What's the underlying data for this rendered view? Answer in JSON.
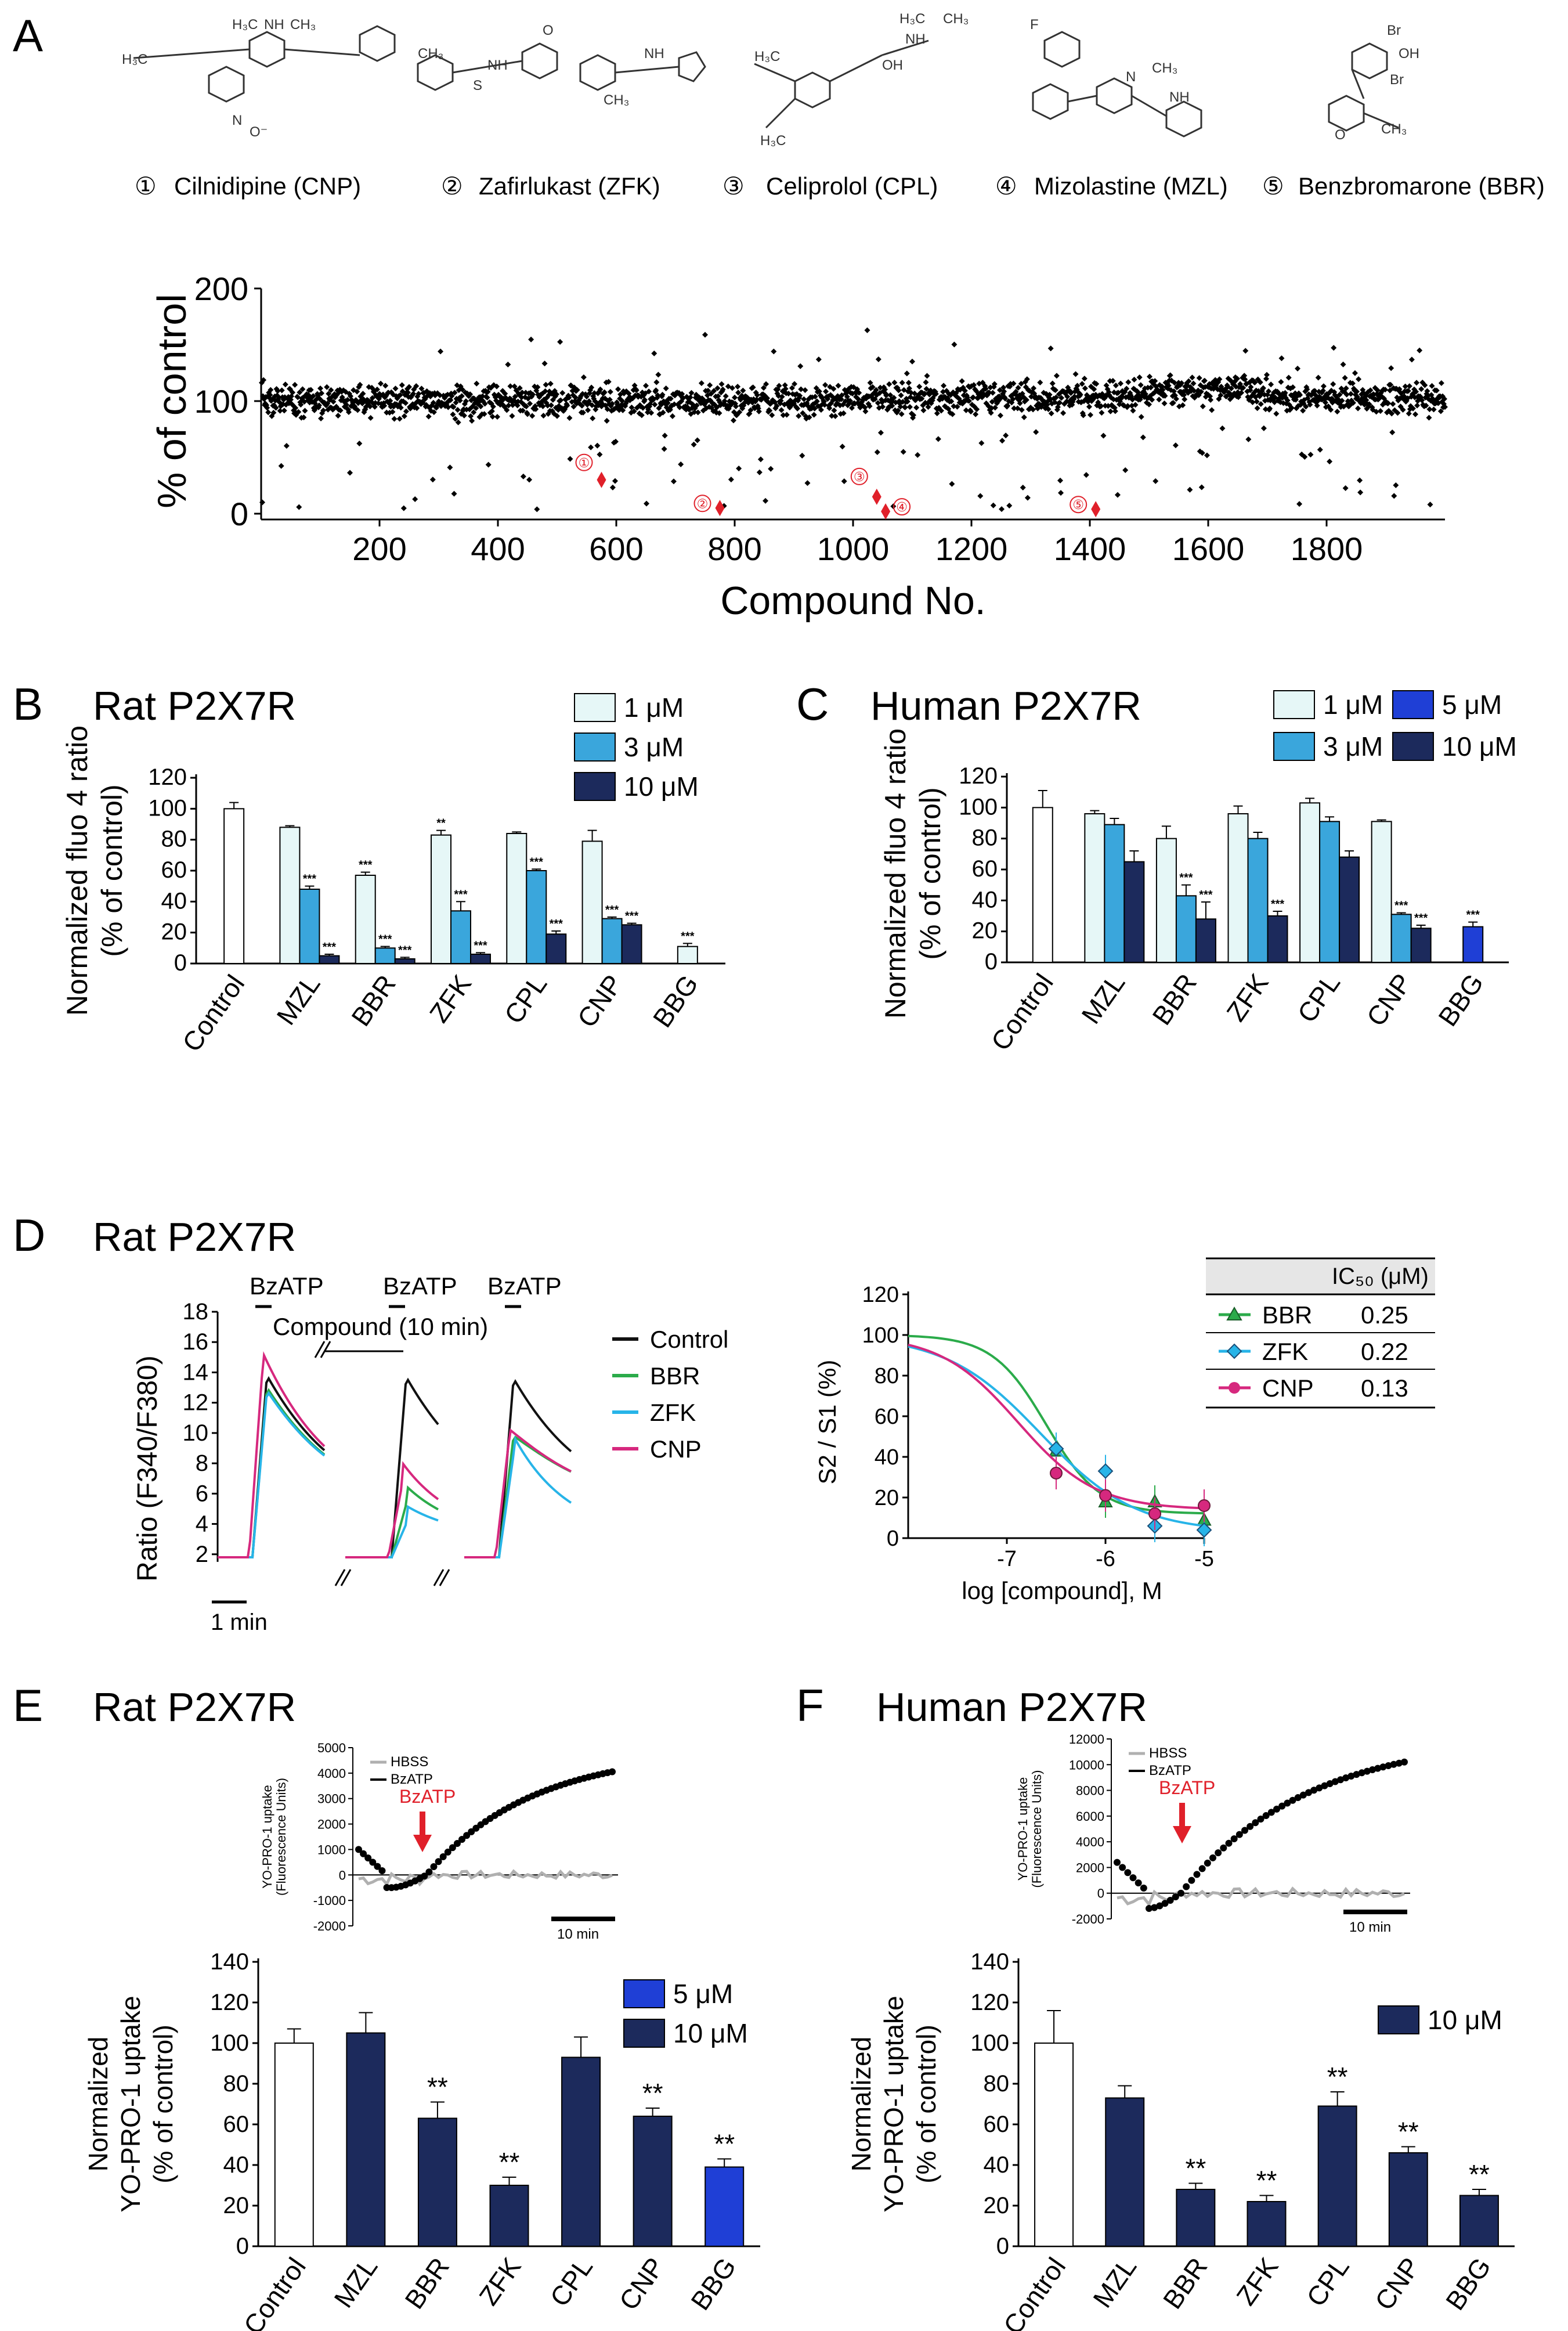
{
  "figure": {
    "panels": {
      "A": {
        "letter": "A"
      },
      "B": {
        "letter": "B",
        "title": "Rat P2X7R"
      },
      "C": {
        "letter": "C",
        "title": "Human P2X7R"
      },
      "D": {
        "letter": "D",
        "title": "Rat P2X7R"
      },
      "E": {
        "letter": "E",
        "title": "Rat P2X7R"
      },
      "F": {
        "letter": "F",
        "title": "Human P2X7R"
      }
    },
    "compounds": [
      {
        "num": "①",
        "label": "Cilnidipine (CNP)"
      },
      {
        "num": "②",
        "label": "Zafirlukast (ZFK)"
      },
      {
        "num": "③",
        "label": "Celiprolol (CPL)"
      },
      {
        "num": "④",
        "label": "Mizolastine (MZL)"
      },
      {
        "num": "⑤",
        "label": "Benzbromarone (BBR)"
      }
    ],
    "colors": {
      "white_bar": "#ffffff",
      "light": "#e6f7f7",
      "mid": "#3aa6dc",
      "dark": "#1c2a5c",
      "blue5": "#1f3fd6",
      "red": "#e0202a",
      "green": "#2bab4a",
      "cyan": "#27b4e8",
      "magenta": "#d6287e"
    }
  },
  "chart_data": [
    {
      "id": "A",
      "type": "scatter",
      "ylabel": "% of control",
      "xlabel": "Compound No.",
      "ylim": [
        0,
        200
      ],
      "xlim": [
        0,
        2000
      ],
      "yticks": [
        "0",
        "100",
        "200"
      ],
      "xticks": [
        "200",
        "400",
        "600",
        "800",
        "1000",
        "1200",
        "1400",
        "1600",
        "1800"
      ],
      "highlights": [
        {
          "label": "①",
          "x": 575,
          "y": 30
        },
        {
          "label": "②",
          "x": 775,
          "y": 5
        },
        {
          "label": "③",
          "x": 1040,
          "y": 15
        },
        {
          "label": "④",
          "x": 1055,
          "y": 2
        },
        {
          "label": "⑤",
          "x": 1410,
          "y": 4
        }
      ]
    },
    {
      "id": "B",
      "type": "bar",
      "ylabel": [
        "Normalized fluo 4 ratio",
        "(% of control)"
      ],
      "ylim": [
        0,
        120
      ],
      "yticks": [
        "0",
        "20",
        "40",
        "60",
        "80",
        "100",
        "120"
      ],
      "categories": [
        "Control",
        "MZL",
        "BBR",
        "ZFK",
        "CPL",
        "CNP",
        "BBG"
      ],
      "legend": [
        "1 μM",
        "3 μM",
        "10 μM"
      ],
      "series": [
        {
          "name": "1 μM",
          "values": [
            100,
            88,
            57,
            83,
            84,
            79,
            11
          ],
          "errors": [
            4,
            1,
            2,
            3,
            1,
            7,
            2
          ],
          "sig": [
            "",
            "",
            "***",
            "**",
            "",
            "",
            "***"
          ]
        },
        {
          "name": "3 μM",
          "values": [
            null,
            48,
            10,
            34,
            60,
            29,
            null
          ],
          "errors": [
            0,
            2,
            1,
            6,
            1,
            1,
            0
          ],
          "sig": [
            "",
            "***",
            "***",
            "***",
            "***",
            "***",
            ""
          ]
        },
        {
          "name": "10 μM",
          "values": [
            null,
            5,
            3,
            6,
            19,
            25,
            null
          ],
          "errors": [
            0,
            1,
            1,
            1,
            2,
            1,
            0
          ],
          "sig": [
            "",
            "***",
            "***",
            "***",
            "***",
            "***",
            ""
          ]
        }
      ]
    },
    {
      "id": "C",
      "type": "bar",
      "ylabel": [
        "Normalized fluo 4 ratio",
        "(% of control)"
      ],
      "ylim": [
        0,
        120
      ],
      "yticks": [
        "0",
        "20",
        "40",
        "60",
        "80",
        "100",
        "120"
      ],
      "categories": [
        "Control",
        "MZL",
        "BBR",
        "ZFK",
        "CPL",
        "CNP",
        "BBG"
      ],
      "legend": [
        "1 μM",
        "5 μM",
        "3 μM",
        "10 μM"
      ],
      "series": [
        {
          "name": "1 μM",
          "values": [
            100,
            96,
            80,
            96,
            103,
            91,
            null
          ],
          "errors": [
            11,
            2,
            8,
            5,
            3,
            1,
            0
          ],
          "sig": [
            "",
            "",
            "",
            "",
            "",
            "",
            ""
          ]
        },
        {
          "name": "3 μM",
          "values": [
            null,
            89,
            43,
            80,
            91,
            31,
            null
          ],
          "errors": [
            0,
            4,
            7,
            4,
            3,
            1,
            0
          ],
          "sig": [
            "",
            "",
            "***",
            "",
            "",
            "***",
            ""
          ]
        },
        {
          "name": "10 μM",
          "values": [
            null,
            65,
            28,
            30,
            68,
            22,
            null
          ],
          "errors": [
            0,
            7,
            11,
            3,
            4,
            2,
            0
          ],
          "sig": [
            "",
            "",
            "***",
            "***",
            "",
            "***",
            ""
          ]
        },
        {
          "name": "5 μM",
          "values": [
            null,
            null,
            null,
            null,
            null,
            null,
            23
          ],
          "errors": [
            0,
            0,
            0,
            0,
            0,
            0,
            3
          ],
          "sig": [
            "",
            "",
            "",
            "",
            "",
            "",
            "***"
          ]
        }
      ]
    },
    {
      "id": "D_traces",
      "type": "line",
      "ylabel": "Ratio (F340/F380)",
      "ylim": [
        0,
        18
      ],
      "yticks": [
        "2",
        "4",
        "6",
        "8",
        "10",
        "12",
        "14",
        "16",
        "18"
      ],
      "stimulus": "BzATP",
      "compound_label": "Compound (10 min)",
      "scale_label": "1 min",
      "legend": [
        "Control",
        "BBR",
        "ZFK",
        "CNP"
      ],
      "peaks": {
        "S1": [
          13.8,
          13.0,
          12.8,
          15.2
        ],
        "S2": [
          13.7,
          5.3,
          4.0,
          6.8
        ],
        "S3": [
          13.6,
          9.8,
          8.6,
          10.2
        ]
      }
    },
    {
      "id": "D_curve",
      "type": "line",
      "ylabel": "S2 / S1 (%)",
      "xlabel": "log [compound], M",
      "ylim": [
        0,
        120
      ],
      "xlim": [
        -8,
        -5
      ],
      "yticks": [
        "0",
        "20",
        "40",
        "60",
        "80",
        "100",
        "120"
      ],
      "xticks": [
        "-7",
        "-6",
        "-5"
      ],
      "table_header": "IC₅₀ (μM)",
      "series": [
        {
          "name": "BBR",
          "ic50": "0.25",
          "x": [
            -6.5,
            -6,
            -5.5,
            -5
          ],
          "y": [
            43,
            18,
            18,
            9
          ]
        },
        {
          "name": "ZFK",
          "ic50": "0.22",
          "x": [
            -6.5,
            -6,
            -5.5,
            -5
          ],
          "y": [
            44,
            33,
            6,
            4
          ]
        },
        {
          "name": "CNP",
          "ic50": "0.13",
          "x": [
            -6.5,
            -6,
            -5.5,
            -5
          ],
          "y": [
            32,
            21,
            12,
            16
          ]
        }
      ]
    },
    {
      "id": "E_inset",
      "type": "line",
      "ylabel": [
        "YO-PRO-1 uptake",
        "(Fluorescence Units)"
      ],
      "ylim": [
        -2000,
        5000
      ],
      "yticks": [
        "-2000",
        "-1000",
        "0",
        "1000",
        "2000",
        "3000",
        "4000",
        "5000"
      ],
      "legend": [
        "HBSS",
        "BzATP"
      ],
      "arrow_label": "BzATP",
      "scale_label": "10 min"
    },
    {
      "id": "E",
      "type": "bar",
      "ylabel": [
        "Normalized",
        "YO-PRO-1 uptake",
        "(% of control)"
      ],
      "ylim": [
        0,
        140
      ],
      "yticks": [
        "0",
        "20",
        "40",
        "60",
        "80",
        "100",
        "120",
        "140"
      ],
      "categories": [
        "Control",
        "MZL",
        "BBR",
        "ZFK",
        "CPL",
        "CNP",
        "BBG"
      ],
      "legend": [
        "5 μM",
        "10 μM"
      ],
      "values": [
        100,
        105,
        63,
        30,
        93,
        64,
        39
      ],
      "errors": [
        7,
        10,
        8,
        4,
        10,
        4,
        4
      ],
      "sig": [
        "",
        "",
        "**",
        "**",
        "",
        "**",
        "**"
      ]
    },
    {
      "id": "F_inset",
      "type": "line",
      "ylabel": [
        "YO-PRO-1 uptake",
        "(Fluorescence Units)"
      ],
      "ylim": [
        -2000,
        12000
      ],
      "yticks": [
        "-2000",
        "0",
        "2000",
        "4000",
        "6000",
        "8000",
        "10000",
        "12000"
      ],
      "legend": [
        "HBSS",
        "BzATP"
      ],
      "arrow_label": "BzATP",
      "scale_label": "10 min"
    },
    {
      "id": "F",
      "type": "bar",
      "ylabel": [
        "Normalized",
        "YO-PRO-1 uptake",
        "(% of control)"
      ],
      "ylim": [
        0,
        140
      ],
      "yticks": [
        "0",
        "20",
        "40",
        "60",
        "80",
        "100",
        "120",
        "140"
      ],
      "categories": [
        "Control",
        "MZL",
        "BBR",
        "ZFK",
        "CPL",
        "CNP",
        "BBG"
      ],
      "legend": [
        "10 μM"
      ],
      "values": [
        100,
        73,
        28,
        22,
        69,
        46,
        25
      ],
      "errors": [
        16,
        6,
        3,
        3,
        7,
        3,
        3
      ],
      "sig": [
        "",
        "",
        "**",
        "**",
        "**",
        "**",
        "**"
      ]
    }
  ]
}
